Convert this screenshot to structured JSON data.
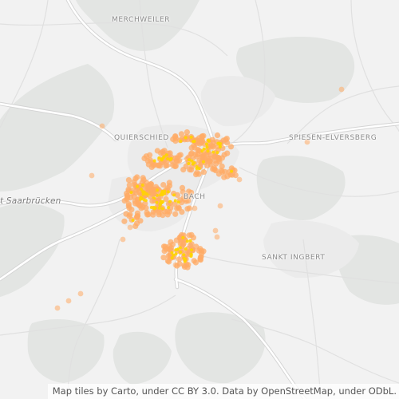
{
  "map": {
    "basemap": "light grey street map",
    "colors": {
      "background": "#f2f2f2",
      "forest": "#e2e4e2",
      "road": "#ffffff",
      "road_casing": "#d8d8d8",
      "minor_road": "#e0e0e0",
      "heat_outer": "#ffab66",
      "heat_core": "#ffd400"
    },
    "labels": {
      "merchweiler": "MERCHWEILER",
      "quierschied": "QUIERSCHIED",
      "spiesen": "SPIESEN-ELVERSBERG",
      "saarbruecken": "t Saarbrücken",
      "sulzbach": "BACH",
      "ingbert": "SANKT INGBERT"
    },
    "attribution": "Map tiles by Carto, under CC BY 3.0. Data by OpenStreetMap, under ODbL."
  }
}
